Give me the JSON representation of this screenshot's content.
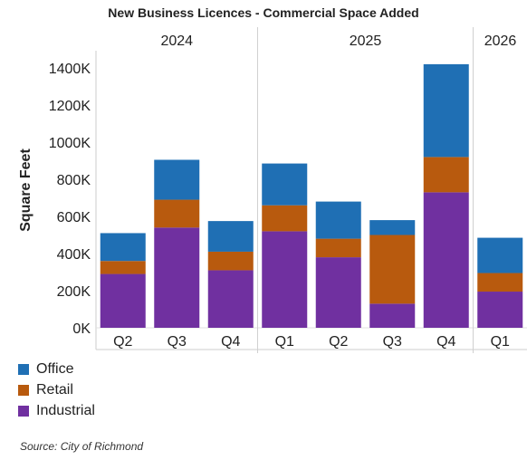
{
  "chart_data": {
    "type": "bar",
    "stacked": true,
    "title": "New Business Licences - Commercial Space Added",
    "ylabel": "Square Feet",
    "xlabel": "",
    "ylim": [
      0,
      1400000
    ],
    "yticks": [
      0,
      200000,
      400000,
      600000,
      800000,
      1000000,
      1200000,
      1400000
    ],
    "ytick_labels": [
      "0K",
      "200K",
      "400K",
      "600K",
      "800K",
      "1000K",
      "1200K",
      "1400K"
    ],
    "grid": false,
    "legend_position": "bottom-left",
    "year_groups": [
      {
        "label": "2024",
        "count": 3
      },
      {
        "label": "2025",
        "count": 4
      },
      {
        "label": "2026",
        "count": 1
      }
    ],
    "categories": [
      "Q2",
      "Q3",
      "Q4",
      "Q1",
      "Q2",
      "Q3",
      "Q4",
      "Q1"
    ],
    "series": [
      {
        "name": "Industrial",
        "color": "#7030a0",
        "values": [
          290000,
          540000,
          310000,
          520000,
          380000,
          130000,
          730000,
          195000
        ]
      },
      {
        "name": "Retail",
        "color": "#b85a0e",
        "values": [
          70000,
          150000,
          100000,
          140000,
          100000,
          370000,
          190000,
          100000
        ]
      },
      {
        "name": "Office",
        "color": "#1f6fb4",
        "values": [
          150000,
          215000,
          165000,
          225000,
          200000,
          80000,
          500000,
          190000
        ]
      }
    ],
    "legend_order": [
      "Office",
      "Retail",
      "Industrial"
    ]
  },
  "source": "Source: City of Richmond"
}
